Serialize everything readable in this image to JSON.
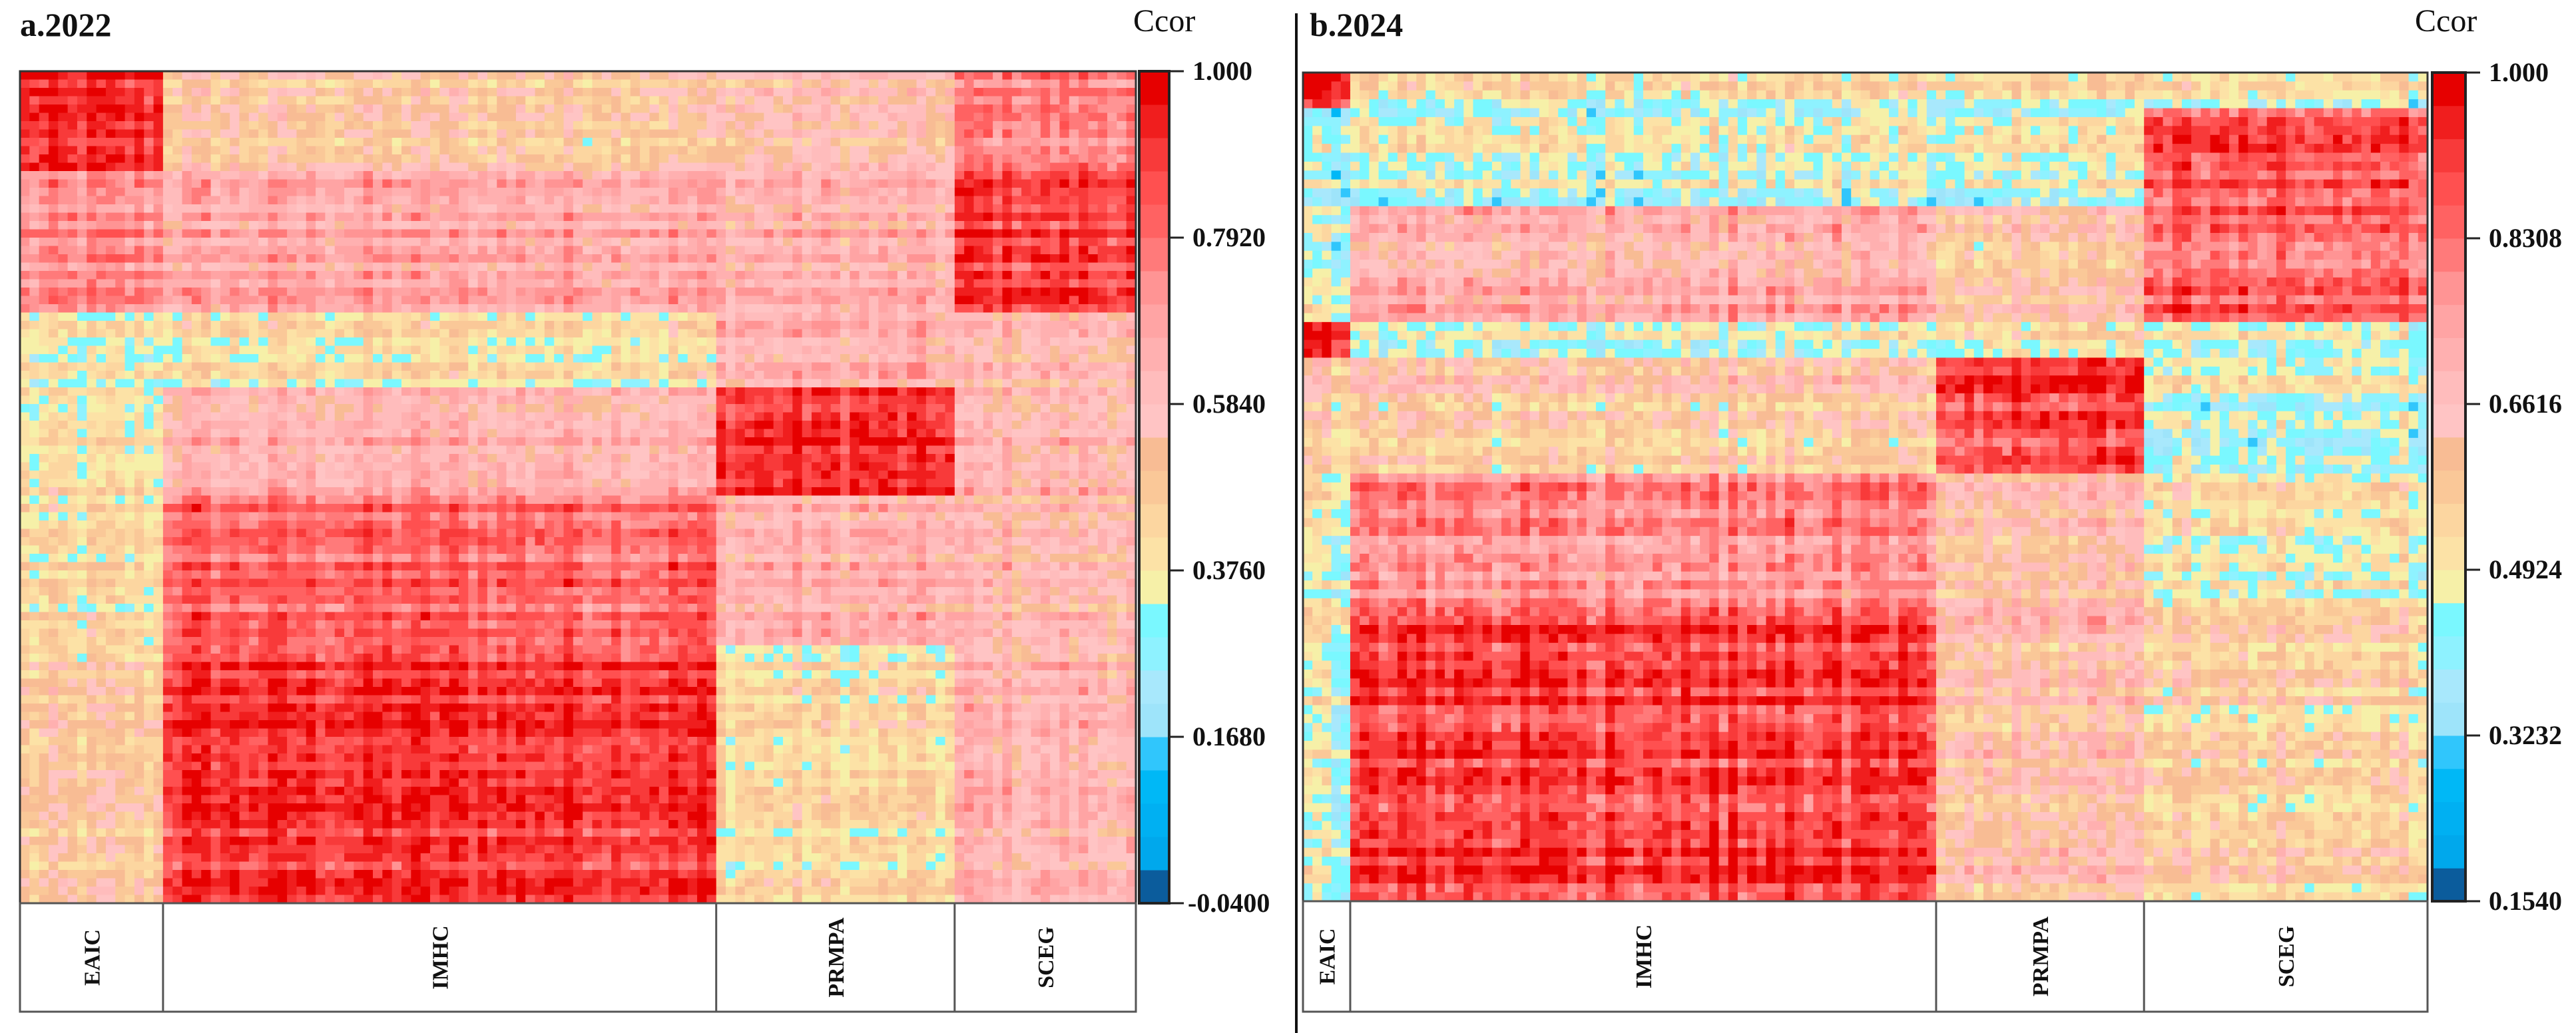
{
  "chart_data": [
    {
      "type": "heatmap",
      "title": "a.2022",
      "colorbar_label": "Ccor",
      "range": [
        -0.04,
        1.0
      ],
      "colorbar_ticks": [
        "1.000",
        "0.7920",
        "0.5840",
        "0.3760",
        "0.1680",
        "-0.0400"
      ],
      "categories": [
        "EAIC",
        "IMHC",
        "PRMPA",
        "SCEG"
      ],
      "indicators_per_category": [
        15,
        58,
        25,
        19
      ],
      "row_blocks": [
        {
          "rows": 12,
          "block_means": [
            0.9,
            0.5,
            0.55,
            0.75
          ]
        },
        {
          "rows": 17,
          "block_means": [
            0.72,
            0.66,
            0.62,
            0.88
          ]
        },
        {
          "rows": 9,
          "block_means": [
            0.35,
            0.4,
            0.62,
            0.58
          ]
        },
        {
          "rows": 13,
          "block_means": [
            0.38,
            0.62,
            0.9,
            0.6
          ]
        },
        {
          "rows": 18,
          "block_means": [
            0.4,
            0.8,
            0.62,
            0.58
          ]
        },
        {
          "rows": 31,
          "block_means": [
            0.48,
            0.9,
            0.42,
            0.62
          ]
        }
      ]
    },
    {
      "type": "heatmap",
      "title": "b.2024",
      "colorbar_label": "Ccor",
      "range": [
        0.154,
        1.0
      ],
      "colorbar_ticks": [
        "1.000",
        "0.8308",
        "0.6616",
        "0.4924",
        "0.3232",
        "0.1540"
      ],
      "categories": [
        "EAIC",
        "IMHC",
        "PRMPA",
        "SCEG"
      ],
      "indicators_per_category": [
        5,
        62,
        22,
        30
      ],
      "row_blocks": [
        {
          "rows": 4,
          "block_means": [
            0.95,
            0.5,
            0.48,
            0.48
          ]
        },
        {
          "rows": 11,
          "block_means": [
            0.42,
            0.46,
            0.46,
            0.86
          ]
        },
        {
          "rows": 13,
          "block_means": [
            0.46,
            0.7,
            0.6,
            0.84
          ]
        },
        {
          "rows": 4,
          "block_means": [
            0.95,
            0.46,
            0.5,
            0.46
          ]
        },
        {
          "rows": 13,
          "block_means": [
            0.6,
            0.6,
            0.9,
            0.46
          ]
        },
        {
          "rows": 17,
          "block_means": [
            0.5,
            0.8,
            0.64,
            0.52
          ]
        },
        {
          "rows": 31,
          "block_means": [
            0.46,
            0.9,
            0.62,
            0.56
          ]
        }
      ]
    }
  ],
  "colorscale": [
    "#0b5c9c",
    "#00a8ec",
    "#00b0f2",
    "#00b8f6",
    "#30c6fc",
    "#9ee4fa",
    "#a8e8fc",
    "#8ef2ff",
    "#7af8ff",
    "#f6f0a8",
    "#fce2a6",
    "#fcd6a0",
    "#fac898",
    "#f8bc94",
    "#ffc4c4",
    "#ffbcbc",
    "#ffb0b0",
    "#ffa4a4",
    "#ff9494",
    "#ff7a7a",
    "#ff6262",
    "#ff5050",
    "#f83a3a",
    "#f01e1e",
    "#e60000"
  ]
}
